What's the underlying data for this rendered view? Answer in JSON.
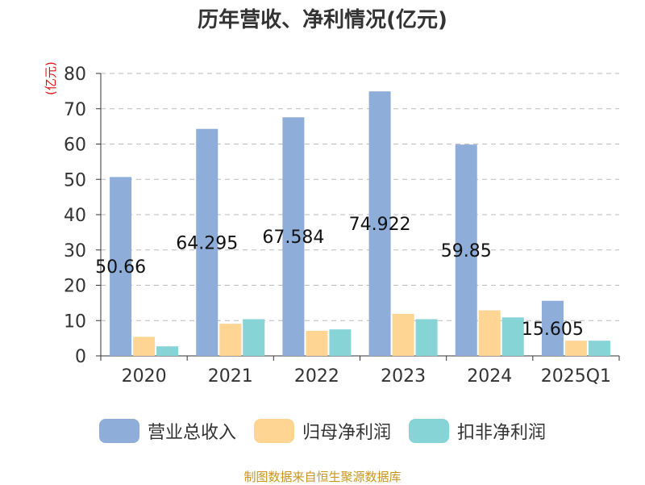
{
  "source_text": "制图数据来自恒生聚源数据库",
  "colors": {
    "series": [
      "#8eadd8",
      "#ffd593",
      "#86d4d6"
    ],
    "grid": "#bbbbbb",
    "axis": "#333333",
    "tick_text": "#333333",
    "ylabel": "#e01010",
    "source": "#c8961e"
  },
  "chart_data": {
    "type": "bar",
    "title": "历年营收、净利情况(亿元)",
    "ylabel": "(亿元)",
    "xlabel": "",
    "ylim": [
      0,
      80
    ],
    "yticks": [
      0,
      10,
      20,
      30,
      40,
      50,
      60,
      70,
      80
    ],
    "grid": true,
    "legend_position": "bottom",
    "categories": [
      "2020",
      "2021",
      "2022",
      "2023",
      "2024",
      "2025Q1"
    ],
    "series": [
      {
        "name": "营业总收入",
        "values": [
          50.66,
          64.295,
          67.584,
          74.922,
          59.85,
          15.605
        ]
      },
      {
        "name": "归母净利润",
        "values": [
          5.4,
          9.1,
          7.1,
          11.9,
          12.9,
          4.3
        ]
      },
      {
        "name": "扣非净利润",
        "values": [
          2.7,
          10.4,
          7.5,
          10.4,
          10.9,
          4.3
        ]
      }
    ],
    "data_labels": [
      "50.66",
      "64.295",
      "67.584",
      "74.922",
      "59.85",
      "15.605"
    ]
  }
}
